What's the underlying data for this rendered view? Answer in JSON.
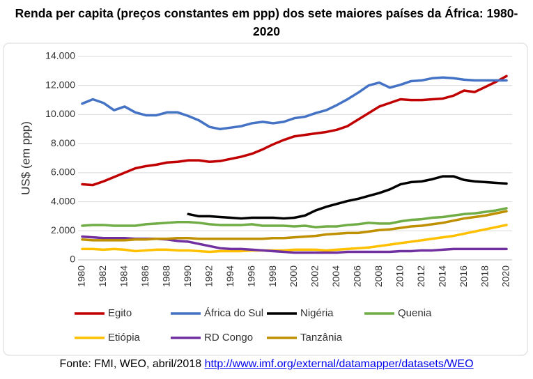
{
  "chart_data": {
    "type": "line",
    "title": "Renda per capita (preços constantes em ppp) dos sete maiores países da África: 1980-2020",
    "y_label": "US$ (em ppp)",
    "x": [
      1980,
      1981,
      1982,
      1983,
      1984,
      1985,
      1986,
      1987,
      1988,
      1989,
      1990,
      1991,
      1992,
      1993,
      1994,
      1995,
      1996,
      1997,
      1998,
      1999,
      2000,
      2001,
      2002,
      2003,
      2004,
      2005,
      2006,
      2007,
      2008,
      2009,
      2010,
      2011,
      2012,
      2013,
      2014,
      2015,
      2016,
      2017,
      2018,
      2019,
      2020
    ],
    "xlim": [
      1980,
      2020
    ],
    "xticks": [
      1980,
      1982,
      1984,
      1986,
      1988,
      1990,
      1992,
      1994,
      1996,
      1998,
      2000,
      2002,
      2004,
      2006,
      2008,
      2010,
      2012,
      2014,
      2016,
      2018,
      2020
    ],
    "ylim": [
      0,
      14000
    ],
    "yticks": [
      0,
      {
        "value": 2000,
        "label": "2.000"
      },
      {
        "value": 4000,
        "label": "4.000"
      },
      {
        "value": 6000,
        "label": "6.000"
      },
      {
        "value": 8000,
        "label": "8.000"
      },
      {
        "value": 10000,
        "label": "10.000"
      },
      {
        "value": 12000,
        "label": "12.000"
      },
      {
        "value": 14000,
        "label": "14.000"
      }
    ],
    "grid": true,
    "legend": "bottom",
    "series": [
      {
        "name": "Egito",
        "color": "#c00000",
        "values": [
          5200,
          5150,
          5400,
          5700,
          6000,
          6300,
          6450,
          6550,
          6700,
          6750,
          6850,
          6850,
          6750,
          6800,
          6950,
          7100,
          7300,
          7600,
          7950,
          8250,
          8500,
          8600,
          8700,
          8800,
          8950,
          9200,
          9650,
          10100,
          10550,
          10800,
          11050,
          11000,
          11000,
          11050,
          11100,
          11300,
          11650,
          11550,
          11900,
          12250,
          12650
        ]
      },
      {
        "name": "África do Sul",
        "color": "#4472c4",
        "values": [
          10750,
          11050,
          10800,
          10300,
          10550,
          10150,
          9950,
          9950,
          10150,
          10150,
          9900,
          9600,
          9150,
          9000,
          9100,
          9200,
          9400,
          9500,
          9400,
          9500,
          9750,
          9850,
          10100,
          10300,
          10650,
          11050,
          11500,
          12000,
          12200,
          11850,
          12050,
          12300,
          12350,
          12500,
          12550,
          12500,
          12400,
          12350,
          12350,
          12350,
          12350
        ]
      },
      {
        "name": "Nigéria",
        "color": "#000000",
        "values": [
          null,
          null,
          null,
          null,
          null,
          null,
          null,
          null,
          null,
          null,
          3150,
          3000,
          3000,
          2950,
          2900,
          2850,
          2900,
          2900,
          2900,
          2850,
          2900,
          3050,
          3400,
          3650,
          3850,
          4050,
          4200,
          4400,
          4600,
          4850,
          5200,
          5350,
          5400,
          5550,
          5750,
          5750,
          5500,
          5400,
          5350,
          5300,
          5250
        ]
      },
      {
        "name": "Quenia",
        "color": "#70ad47",
        "values": [
          2350,
          2400,
          2400,
          2350,
          2350,
          2350,
          2450,
          2500,
          2550,
          2600,
          2600,
          2550,
          2450,
          2400,
          2400,
          2400,
          2450,
          2350,
          2350,
          2350,
          2300,
          2350,
          2250,
          2300,
          2300,
          2400,
          2450,
          2550,
          2500,
          2500,
          2650,
          2750,
          2800,
          2900,
          2950,
          3050,
          3150,
          3200,
          3300,
          3400,
          3550
        ]
      },
      {
        "name": "Etiópia",
        "color": "#ffc000",
        "values": [
          750,
          750,
          700,
          750,
          700,
          600,
          650,
          700,
          700,
          650,
          650,
          600,
          550,
          600,
          600,
          600,
          650,
          650,
          650,
          650,
          700,
          700,
          700,
          650,
          700,
          750,
          800,
          850,
          950,
          1050,
          1150,
          1250,
          1350,
          1450,
          1550,
          1650,
          1800,
          1950,
          2100,
          2250,
          2400
        ]
      },
      {
        "name": "RD Congo",
        "color": "#7030a0",
        "values": [
          1600,
          1550,
          1500,
          1500,
          1500,
          1450,
          1450,
          1450,
          1400,
          1300,
          1250,
          1100,
          950,
          800,
          750,
          750,
          700,
          650,
          600,
          550,
          500,
          500,
          500,
          500,
          500,
          550,
          550,
          550,
          550,
          550,
          600,
          600,
          650,
          650,
          700,
          750,
          750,
          750,
          750,
          750,
          750
        ]
      },
      {
        "name": "Tanzânia",
        "color": "#bf9000",
        "values": [
          1400,
          1350,
          1350,
          1350,
          1350,
          1400,
          1400,
          1450,
          1450,
          1500,
          1500,
          1450,
          1450,
          1450,
          1450,
          1450,
          1450,
          1450,
          1500,
          1500,
          1550,
          1600,
          1650,
          1750,
          1800,
          1850,
          1850,
          1950,
          2050,
          2100,
          2200,
          2300,
          2350,
          2450,
          2550,
          2700,
          2850,
          2950,
          3050,
          3200,
          3350
        ]
      }
    ]
  },
  "source": {
    "text": "Fonte: FMI, WEO, abril/2018",
    "url": "http://www.imf.org/external/datamapper/datasets/WEO"
  }
}
